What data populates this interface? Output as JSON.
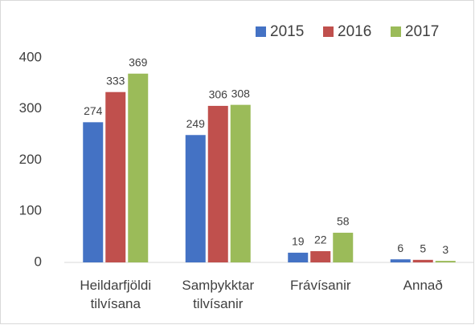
{
  "chart_data": {
    "type": "bar",
    "categories": [
      [
        "Heildarfjöldi",
        "tilvísana"
      ],
      [
        "Samþykktar",
        "tilvísanir"
      ],
      [
        "Frávísanir"
      ],
      [
        "Annað"
      ]
    ],
    "series": [
      {
        "name": "2015",
        "color": "#4472c4",
        "values": [
          274,
          249,
          19,
          6
        ]
      },
      {
        "name": "2016",
        "color": "#c0504d",
        "values": [
          333,
          306,
          22,
          5
        ]
      },
      {
        "name": "2017",
        "color": "#9bbb59",
        "values": [
          369,
          308,
          58,
          3
        ]
      }
    ],
    "ylim": [
      0,
      400
    ],
    "yticks": [
      0,
      100,
      200,
      300,
      400
    ],
    "grid": false,
    "legend": "top-right"
  }
}
